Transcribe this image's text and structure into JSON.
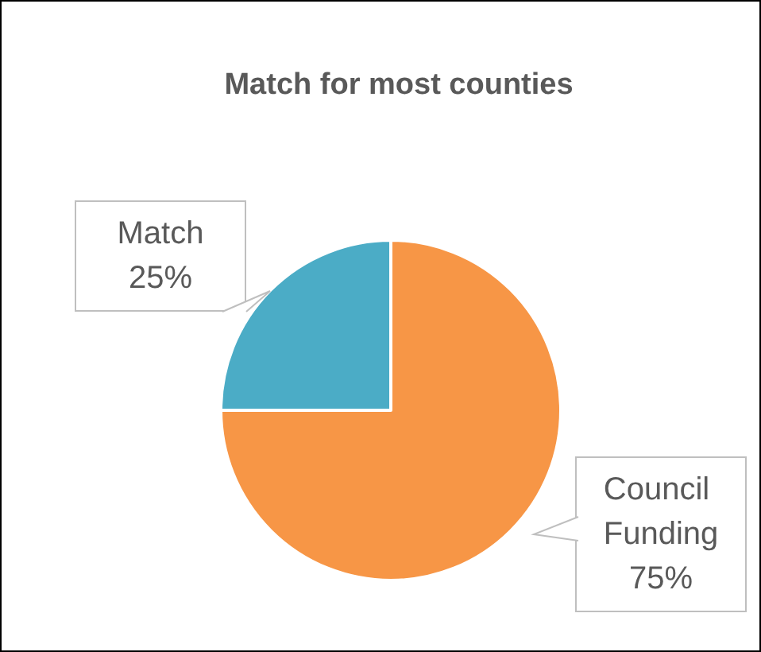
{
  "chart_data": {
    "type": "pie",
    "title": "Match for most counties",
    "categories": [
      "Match",
      "Council Funding"
    ],
    "values": [
      25,
      75
    ],
    "colors": [
      "#4bacc6",
      "#f79646"
    ],
    "value_labels": [
      "25%",
      "75%"
    ],
    "legend": false
  }
}
